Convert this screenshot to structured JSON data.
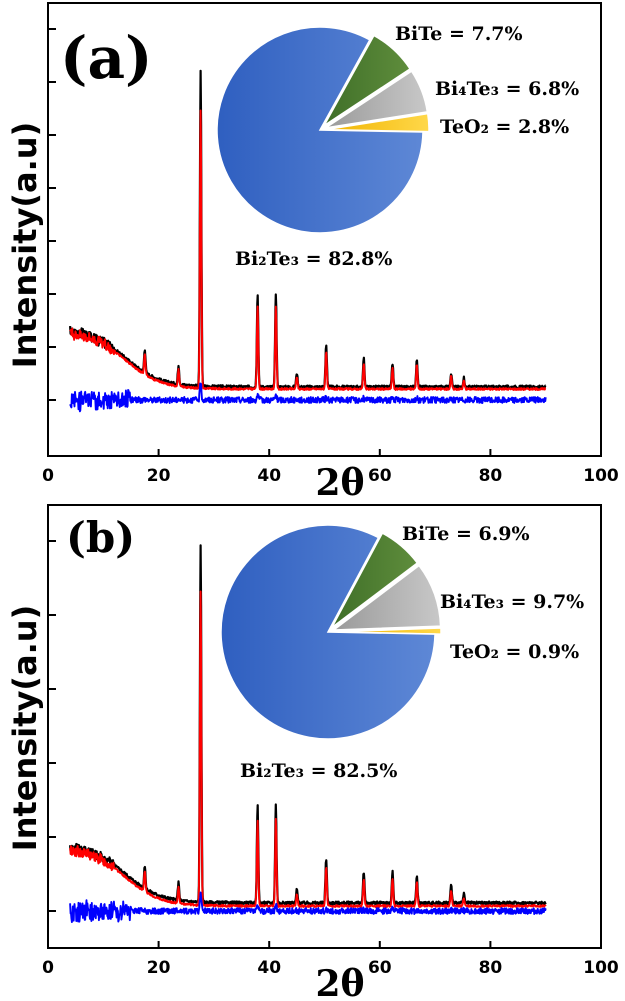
{
  "colors": {
    "black": "#000000",
    "red": "#ff0000",
    "blue": "#0000ff",
    "Bi2Te3": "#3a6bc6",
    "BiTe": "#4c7a30",
    "Bi4Te3": "#a8a8a8",
    "TeO2": "#f5c219"
  },
  "chart_data": [
    {
      "type": "line",
      "panel_label": "(a)",
      "xlabel": "2θ",
      "ylabel": "Intensity(a.u)",
      "xlim": [
        0,
        100
      ],
      "xticks": [
        0,
        20,
        40,
        60,
        80,
        100
      ],
      "x_range": [
        4,
        90
      ],
      "peaks": [
        {
          "x": 27.6,
          "y": 67
        },
        {
          "x": 37.9,
          "y": 20
        },
        {
          "x": 41.2,
          "y": 20
        },
        {
          "x": 50.3,
          "y": 9
        },
        {
          "x": 57.1,
          "y": 6
        },
        {
          "x": 62.3,
          "y": 5
        },
        {
          "x": 66.7,
          "y": 6
        },
        {
          "x": 17.5,
          "y": 5
        },
        {
          "x": 23.6,
          "y": 4
        },
        {
          "x": 45.0,
          "y": 3
        },
        {
          "x": 72.9,
          "y": 3
        },
        {
          "x": 75.2,
          "y": 2
        }
      ],
      "series": [
        {
          "key": "black"
        },
        {
          "key": "red"
        },
        {
          "key": "blue"
        }
      ],
      "pie": {
        "type": "pie",
        "slices": [
          {
            "key": "Bi2Te3",
            "value": 82.8,
            "label": "Bi₂Te₃ = 82.8%"
          },
          {
            "key": "BiTe",
            "value": 7.7,
            "label": "BiTe = 7.7%"
          },
          {
            "key": "Bi4Te3",
            "value": 6.8,
            "label": "Bi₄Te₃ = 6.8%"
          },
          {
            "key": "TeO2",
            "value": 2.8,
            "label": "TeO₂ = 2.8%"
          }
        ]
      }
    },
    {
      "type": "line",
      "panel_label": "(b)",
      "xlabel": "2θ",
      "ylabel": "Intensity(a.u)",
      "xlim": [
        0,
        100
      ],
      "xticks": [
        0,
        20,
        40,
        60,
        80,
        100
      ],
      "x_range": [
        4,
        90
      ],
      "peaks": [
        {
          "x": 27.6,
          "y": 80
        },
        {
          "x": 37.9,
          "y": 22
        },
        {
          "x": 41.2,
          "y": 22
        },
        {
          "x": 50.3,
          "y": 10
        },
        {
          "x": 57.1,
          "y": 7
        },
        {
          "x": 62.3,
          "y": 7
        },
        {
          "x": 66.7,
          "y": 6
        },
        {
          "x": 17.5,
          "y": 5
        },
        {
          "x": 23.6,
          "y": 4
        },
        {
          "x": 45.0,
          "y": 3
        },
        {
          "x": 72.9,
          "y": 4
        },
        {
          "x": 75.2,
          "y": 2
        }
      ],
      "series": [
        {
          "key": "black"
        },
        {
          "key": "red"
        },
        {
          "key": "blue"
        }
      ],
      "pie": {
        "type": "pie",
        "slices": [
          {
            "key": "Bi2Te3",
            "value": 82.5,
            "label": "Bi₂Te₃ = 82.5%"
          },
          {
            "key": "BiTe",
            "value": 6.9,
            "label": "BiTe = 6.9%"
          },
          {
            "key": "Bi4Te3",
            "value": 9.7,
            "label": "Bi₄Te₃ = 9.7%"
          },
          {
            "key": "TeO2",
            "value": 0.9,
            "label": "TeO₂ = 0.9%"
          }
        ]
      }
    }
  ]
}
